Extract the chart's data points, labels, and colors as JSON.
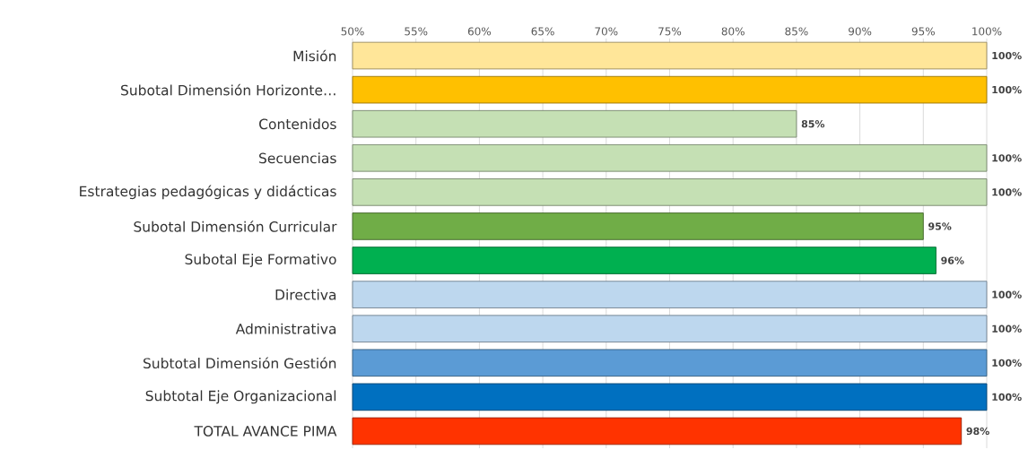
{
  "chart_data": {
    "type": "bar",
    "orientation": "horizontal",
    "categories": [
      "Misión",
      "Subotal Dimensión Horizonte…",
      "Contenidos",
      "Secuencias",
      "Estrategias pedagógicas y didácticas",
      "Subotal Dimensión Curricular",
      "Subotal Eje Formativo",
      "Directiva",
      "Administrativa",
      "Subtotal Dimensión Gestión",
      "Subtotal Eje Organizacional",
      "TOTAL AVANCE PIMA"
    ],
    "values": [
      100,
      100,
      85,
      100,
      100,
      95,
      96,
      100,
      100,
      100,
      100,
      98
    ],
    "colors": [
      "#ffe699",
      "#ffc000",
      "#c5e0b4",
      "#c5e0b4",
      "#c5e0b4",
      "#70ad47",
      "#00b050",
      "#bdd7ee",
      "#bdd7ee",
      "#5b9bd5",
      "#0070c0",
      "#ff3300"
    ],
    "value_labels": [
      "100%",
      "100%",
      "85%",
      "100%",
      "100%",
      "95%",
      "96%",
      "100%",
      "100%",
      "100%",
      "100%",
      "98%"
    ],
    "xlim": [
      50,
      100
    ],
    "xticks": [
      {
        "value": 50,
        "label": "50%"
      },
      {
        "value": 55,
        "label": "55%"
      },
      {
        "value": 60,
        "label": "60%"
      },
      {
        "value": 65,
        "label": "65%"
      },
      {
        "value": 70,
        "label": "70%"
      },
      {
        "value": 75,
        "label": "75%"
      },
      {
        "value": 80,
        "label": "80%"
      },
      {
        "value": 85,
        "label": "85%"
      },
      {
        "value": 90,
        "label": "90%"
      },
      {
        "value": 95,
        "label": "95%"
      },
      {
        "value": 100,
        "label": "100%"
      }
    ],
    "grid": "x"
  }
}
